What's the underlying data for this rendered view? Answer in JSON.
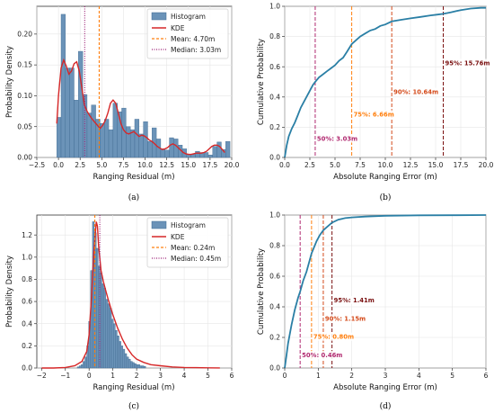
{
  "colors": {
    "hist_fill": "#6b93b8",
    "hist_edge": "#3f6a91",
    "kde": "#d62728",
    "mean": "#ff7f0e",
    "median": "#9b1f74",
    "cdf": "#2a7fa5",
    "p50": "#b0286f",
    "p75": "#ff7f0e",
    "p90": "#d44a1a",
    "p95": "#7a1010",
    "grid": "#e6e6e6"
  },
  "chart_data": [
    {
      "type": "bar",
      "caption": "(a)",
      "xlabel": "Ranging Residual (m)",
      "ylabel": "Probability Density",
      "xlim": [
        -2.5,
        20.0
      ],
      "ylim": [
        0,
        0.245
      ],
      "xticks": [
        -2.5,
        0.0,
        2.5,
        5.0,
        7.5,
        10.0,
        12.5,
        15.0,
        17.5,
        20.0
      ],
      "yticks": [
        0.0,
        0.05,
        0.1,
        0.15,
        0.2
      ],
      "xtick_labels": [
        "−2.5",
        "0.0",
        "2.5",
        "5.0",
        "7.5",
        "10.0",
        "12.5",
        "15.0",
        "17.5",
        "20.0"
      ],
      "ytick_labels": [
        "0.00",
        "0.05",
        "0.10",
        "0.15",
        "0.20"
      ],
      "bin_start": -0.2,
      "bin_width": 0.5,
      "values": [
        0.065,
        0.232,
        0.145,
        0.145,
        0.093,
        0.172,
        0.102,
        0.072,
        0.085,
        0.062,
        0.055,
        0.062,
        0.045,
        0.088,
        0.074,
        0.08,
        0.05,
        0.045,
        0.062,
        0.038,
        0.058,
        0.026,
        0.048,
        0.03,
        0.014,
        0.012,
        0.032,
        0.03,
        0.02,
        0.014,
        0.005,
        0.005,
        0.01,
        0.008,
        0.008,
        0.004,
        0.018,
        0.025,
        0.013,
        0.026
      ],
      "kde_x": [
        -0.2,
        0.0,
        0.3,
        0.6,
        0.9,
        1.2,
        1.5,
        1.8,
        2.1,
        2.4,
        2.7,
        3.0,
        3.3,
        3.6,
        3.9,
        4.2,
        4.5,
        4.8,
        5.1,
        5.4,
        5.7,
        6.0,
        6.3,
        6.6,
        6.9,
        7.2,
        7.5,
        7.8,
        8.1,
        8.4,
        8.7,
        9.0,
        9.3,
        9.6,
        9.9,
        10.2,
        10.5,
        10.8,
        11.1,
        11.4,
        11.7,
        12.0,
        12.3,
        12.6,
        12.9,
        13.2,
        13.5,
        13.8,
        14.1,
        14.4,
        14.7,
        15.0,
        15.3,
        15.6,
        15.9,
        16.2,
        16.5,
        16.8,
        17.1,
        17.4,
        17.7,
        18.0,
        18.3,
        18.6,
        18.9,
        19.2
      ],
      "kde_y": [
        0.055,
        0.1,
        0.145,
        0.158,
        0.148,
        0.135,
        0.14,
        0.152,
        0.155,
        0.14,
        0.112,
        0.085,
        0.075,
        0.068,
        0.062,
        0.057,
        0.052,
        0.047,
        0.052,
        0.06,
        0.072,
        0.088,
        0.093,
        0.088,
        0.072,
        0.055,
        0.045,
        0.04,
        0.038,
        0.04,
        0.042,
        0.038,
        0.034,
        0.036,
        0.035,
        0.032,
        0.028,
        0.026,
        0.022,
        0.018,
        0.015,
        0.013,
        0.014,
        0.016,
        0.02,
        0.022,
        0.02,
        0.016,
        0.012,
        0.008,
        0.006,
        0.005,
        0.005,
        0.006,
        0.007,
        0.007,
        0.007,
        0.008,
        0.01,
        0.014,
        0.018,
        0.02,
        0.02,
        0.018,
        0.013,
        0.008
      ],
      "mean": 4.7,
      "median": 3.03,
      "legend": [
        "Histogram",
        "KDE",
        "Mean: 4.70m",
        "Median: 3.03m"
      ],
      "legend_position": "top-right",
      "grid": true
    },
    {
      "type": "line",
      "caption": "(b)",
      "xlabel": "Absolute Ranging Error (m)",
      "ylabel": "Cumulative Probability",
      "xlim": [
        0.0,
        20.0
      ],
      "ylim": [
        0.0,
        1.0
      ],
      "xticks": [
        0.0,
        2.5,
        5.0,
        7.5,
        10.0,
        12.5,
        15.0,
        17.5,
        20.0
      ],
      "yticks": [
        0.0,
        0.2,
        0.4,
        0.6,
        0.8,
        1.0
      ],
      "xtick_labels": [
        "0.0",
        "2.5",
        "5.0",
        "7.5",
        "10.0",
        "12.5",
        "15.0",
        "17.5",
        "20.0"
      ],
      "ytick_labels": [
        "0.0",
        "0.2",
        "0.4",
        "0.6",
        "0.8",
        "1.0"
      ],
      "x": [
        0.0,
        0.2,
        0.4,
        0.7,
        1.0,
        1.3,
        1.6,
        2.0,
        2.4,
        2.8,
        3.03,
        3.4,
        3.8,
        4.2,
        4.6,
        5.0,
        5.4,
        5.8,
        6.2,
        6.66,
        7.0,
        7.5,
        8.0,
        8.5,
        9.0,
        9.5,
        10.0,
        10.64,
        11.5,
        12.5,
        13.5,
        14.5,
        15.2,
        15.76,
        16.5,
        17.5,
        18.5,
        19.5,
        20.0
      ],
      "y": [
        0.0,
        0.08,
        0.14,
        0.19,
        0.23,
        0.28,
        0.33,
        0.38,
        0.43,
        0.48,
        0.5,
        0.53,
        0.55,
        0.57,
        0.59,
        0.61,
        0.64,
        0.66,
        0.7,
        0.75,
        0.77,
        0.8,
        0.82,
        0.84,
        0.85,
        0.87,
        0.88,
        0.9,
        0.91,
        0.92,
        0.93,
        0.94,
        0.945,
        0.95,
        0.96,
        0.975,
        0.985,
        0.99,
        0.99
      ],
      "percentiles": [
        {
          "label": "50%: 3.03m",
          "value": 3.03,
          "color": "#b0286f"
        },
        {
          "label": "75%: 6.66m",
          "value": 6.66,
          "color": "#ff7f0e"
        },
        {
          "label": "90%: 10.64m",
          "value": 10.64,
          "color": "#d44a1a"
        },
        {
          "label": "95%: 15.76m",
          "value": 15.76,
          "color": "#7a1010"
        }
      ],
      "grid": true
    },
    {
      "type": "bar",
      "caption": "(c)",
      "xlabel": "Ranging Residual (m)",
      "ylabel": "Probability Density",
      "xlim": [
        -2.2,
        6.0
      ],
      "ylim": [
        0,
        1.38
      ],
      "xticks": [
        -2,
        -1,
        0,
        1,
        2,
        3,
        4,
        5,
        6
      ],
      "yticks": [
        0.0,
        0.2,
        0.4,
        0.6,
        0.8,
        1.0,
        1.2
      ],
      "xtick_labels": [
        "−2",
        "−1",
        "0",
        "1",
        "2",
        "3",
        "4",
        "5",
        "6"
      ],
      "ytick_labels": [
        "0.0",
        "0.2",
        "0.4",
        "0.6",
        "0.8",
        "1.0",
        "1.2"
      ],
      "bin_start": -0.5,
      "bin_width": 0.08,
      "values": [
        0.01,
        0.02,
        0.03,
        0.06,
        0.1,
        0.2,
        0.42,
        0.88,
        1.32,
        1.22,
        1.08,
        0.92,
        0.86,
        0.76,
        0.72,
        0.62,
        0.58,
        0.54,
        0.44,
        0.4,
        0.34,
        0.29,
        0.24,
        0.2,
        0.17,
        0.13,
        0.1,
        0.08,
        0.06,
        0.05,
        0.04,
        0.03,
        0.03,
        0.02,
        0.02,
        0.015
      ],
      "kde_x": [
        -2.0,
        -1.5,
        -1.0,
        -0.6,
        -0.3,
        -0.1,
        0.0,
        0.1,
        0.2,
        0.3,
        0.35,
        0.4,
        0.5,
        0.6,
        0.7,
        0.8,
        0.9,
        1.0,
        1.2,
        1.4,
        1.6,
        1.8,
        2.0,
        2.3,
        2.6,
        3.0,
        3.5,
        4.0,
        4.5,
        5.0,
        5.5
      ],
      "kde_y": [
        0.0,
        0.0,
        0.005,
        0.02,
        0.06,
        0.15,
        0.3,
        0.65,
        1.05,
        1.32,
        1.28,
        1.1,
        0.88,
        0.78,
        0.7,
        0.62,
        0.55,
        0.48,
        0.36,
        0.26,
        0.18,
        0.12,
        0.08,
        0.05,
        0.03,
        0.02,
        0.01,
        0.005,
        0.003,
        0.002,
        0.001
      ],
      "mean": 0.24,
      "median": 0.45,
      "legend": [
        "Histogram",
        "KDE",
        "Mean: 0.24m",
        "Median: 0.45m"
      ],
      "legend_position": "top-right",
      "grid": true
    },
    {
      "type": "line",
      "caption": "(d)",
      "xlabel": "Absolute Ranging Error (m)",
      "ylabel": "Cumulative Probability",
      "xlim": [
        0,
        6
      ],
      "ylim": [
        0.0,
        1.0
      ],
      "xticks": [
        0,
        1,
        2,
        3,
        4,
        5,
        6
      ],
      "yticks": [
        0.0,
        0.2,
        0.4,
        0.6,
        0.8,
        1.0
      ],
      "xtick_labels": [
        "0",
        "1",
        "2",
        "3",
        "4",
        "5",
        "6"
      ],
      "ytick_labels": [
        "0.0",
        "0.2",
        "0.4",
        "0.6",
        "0.8",
        "1.0"
      ],
      "x": [
        0.0,
        0.05,
        0.1,
        0.2,
        0.3,
        0.4,
        0.46,
        0.55,
        0.65,
        0.8,
        0.95,
        1.05,
        1.15,
        1.25,
        1.41,
        1.6,
        1.8,
        2.0,
        2.4,
        3.0,
        4.0,
        5.0,
        6.0
      ],
      "y": [
        0.0,
        0.08,
        0.16,
        0.28,
        0.38,
        0.46,
        0.5,
        0.57,
        0.63,
        0.75,
        0.83,
        0.87,
        0.9,
        0.92,
        0.95,
        0.97,
        0.98,
        0.985,
        0.99,
        0.995,
        0.998,
        0.999,
        1.0
      ],
      "percentiles": [
        {
          "label": "50%: 0.46m",
          "value": 0.46,
          "color": "#b0286f"
        },
        {
          "label": "75%: 0.80m",
          "value": 0.8,
          "color": "#ff7f0e"
        },
        {
          "label": "90%: 1.15m",
          "value": 1.15,
          "color": "#d44a1a"
        },
        {
          "label": "95%: 1.41m",
          "value": 1.41,
          "color": "#7a1010"
        }
      ],
      "grid": true
    }
  ]
}
